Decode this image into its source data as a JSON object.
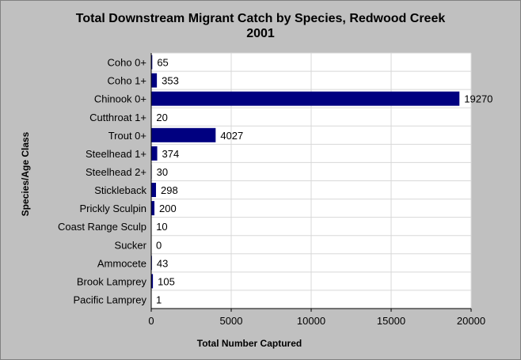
{
  "chart_data": {
    "type": "bar",
    "orientation": "horizontal",
    "title": "Total Downstream Migrant Catch by Species, Redwood Creek",
    "subtitle": "2001",
    "xlabel": "Total Number Captured",
    "ylabel": "Species/Age Class",
    "categories": [
      "Coho 0+",
      "Coho 1+",
      "Chinook 0+",
      "Cutthroat 1+",
      "Trout 0+",
      "Steelhead 1+",
      "Steelhead 2+",
      "Stickleback",
      "Prickly Sculpin",
      "Coast Range Sculp",
      "Sucker",
      "Ammocete",
      "Brook Lamprey",
      "Pacific Lamprey"
    ],
    "values": [
      65,
      353,
      19270,
      20,
      4027,
      374,
      30,
      298,
      200,
      10,
      0,
      43,
      105,
      1
    ],
    "xlim": [
      0,
      20000
    ],
    "xticks": [
      0,
      5000,
      10000,
      15000,
      20000
    ],
    "grid": true,
    "legend": "none",
    "bar_color": "#000080",
    "plot_background": "#ffffff",
    "background": "#c0c0c0"
  }
}
